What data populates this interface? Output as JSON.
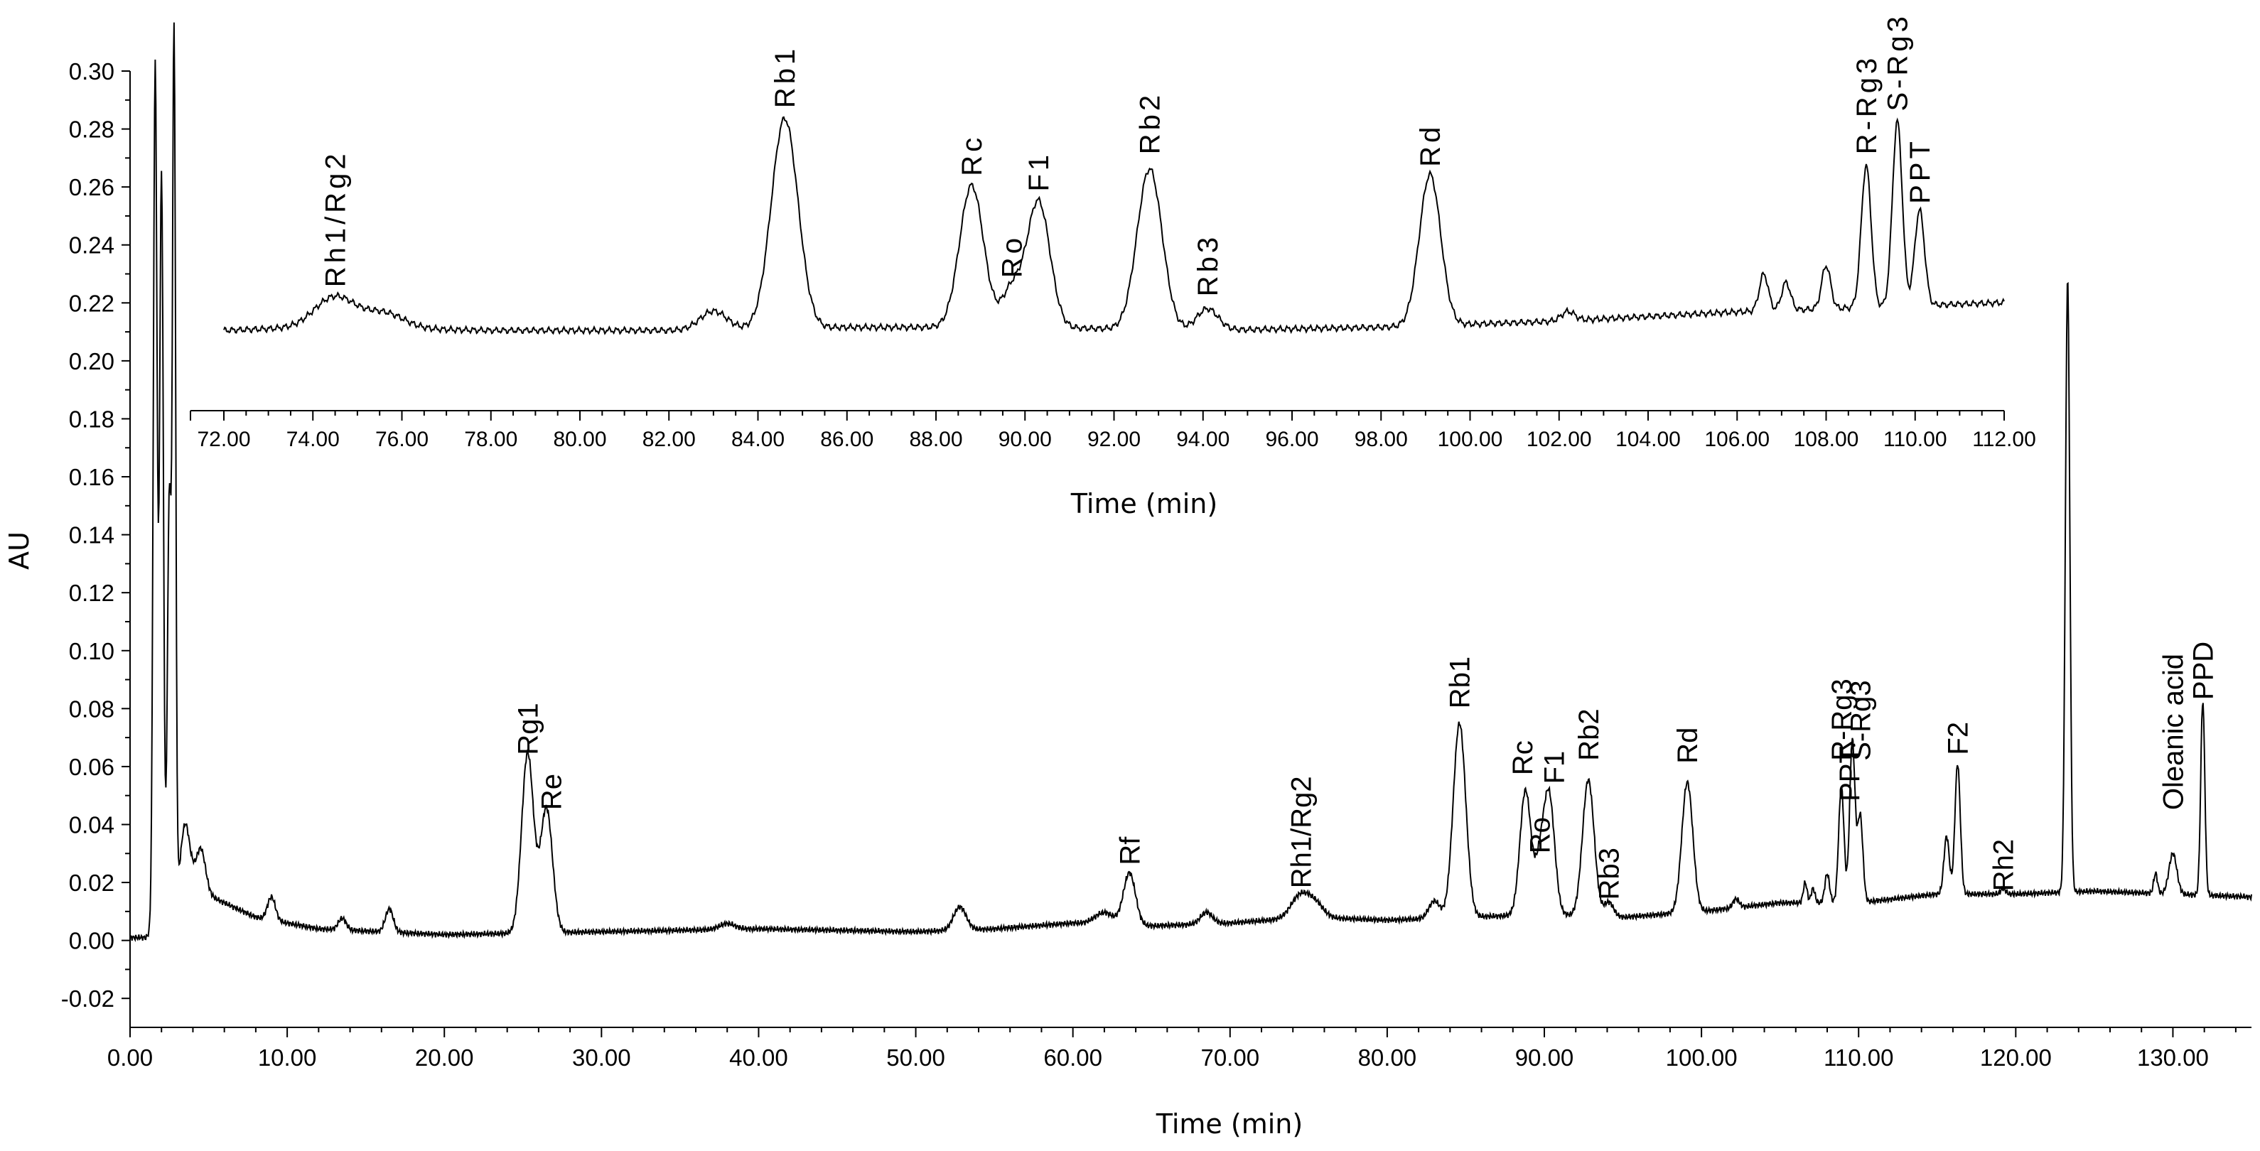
{
  "chart_data": [
    {
      "type": "line",
      "name": "main-chromatogram",
      "xlabel": "Time (min)",
      "ylabel": "AU",
      "xlim": [
        0,
        135
      ],
      "ylim": [
        -0.03,
        0.3
      ],
      "xticks": [
        "0.00",
        "10.00",
        "20.00",
        "30.00",
        "40.00",
        "50.00",
        "60.00",
        "70.00",
        "80.00",
        "90.00",
        "100.00",
        "110.00",
        "120.00",
        "130.00"
      ],
      "yticks": [
        "-0.02",
        "0.00",
        "0.02",
        "0.04",
        "0.06",
        "0.08",
        "0.10",
        "0.12",
        "0.14",
        "0.16",
        "0.18",
        "0.20",
        "0.22",
        "0.24",
        "0.26",
        "0.28",
        "0.30"
      ],
      "baseline": [
        [
          0,
          0.001
        ],
        [
          1,
          0.001
        ],
        [
          4,
          0.018
        ],
        [
          8,
          0.008
        ],
        [
          12,
          0.004
        ],
        [
          20,
          0.002
        ],
        [
          30,
          0.003
        ],
        [
          40,
          0.004
        ],
        [
          50,
          0.003
        ],
        [
          55,
          0.004
        ],
        [
          60,
          0.006
        ],
        [
          65,
          0.005
        ],
        [
          70,
          0.006
        ],
        [
          75,
          0.008
        ],
        [
          80,
          0.007
        ],
        [
          85,
          0.008
        ],
        [
          90,
          0.009
        ],
        [
          95,
          0.008
        ],
        [
          100,
          0.01
        ],
        [
          105,
          0.013
        ],
        [
          110,
          0.013
        ],
        [
          115,
          0.016
        ],
        [
          120,
          0.016
        ],
        [
          125,
          0.017
        ],
        [
          130,
          0.016
        ],
        [
          135,
          0.015
        ]
      ],
      "peaks": [
        {
          "x": 1.6,
          "height": 0.298,
          "width": 0.12
        },
        {
          "x": 2.0,
          "height": 0.258,
          "width": 0.12
        },
        {
          "x": 2.5,
          "height": 0.145,
          "width": 0.12
        },
        {
          "x": 2.8,
          "height": 0.298,
          "width": 0.1
        },
        {
          "x": 3.5,
          "height": 0.025,
          "width": 0.3
        },
        {
          "x": 4.5,
          "height": 0.015,
          "width": 0.3
        },
        {
          "x": 9.0,
          "height": 0.008,
          "width": 0.25
        },
        {
          "x": 13.5,
          "height": 0.004,
          "width": 0.25
        },
        {
          "x": 16.5,
          "height": 0.008,
          "width": 0.25
        },
        {
          "x": 25.3,
          "height": 0.062,
          "width": 0.38
        },
        {
          "x": 26.5,
          "height": 0.043,
          "width": 0.38
        },
        {
          "x": 38.0,
          "height": 0.002,
          "width": 0.5
        },
        {
          "x": 52.8,
          "height": 0.008,
          "width": 0.4
        },
        {
          "x": 62.0,
          "height": 0.004,
          "width": 0.6
        },
        {
          "x": 63.6,
          "height": 0.018,
          "width": 0.38
        },
        {
          "x": 68.5,
          "height": 0.004,
          "width": 0.38
        },
        {
          "x": 74.5,
          "height": 0.008,
          "width": 0.6
        },
        {
          "x": 75.5,
          "height": 0.004,
          "width": 0.5
        },
        {
          "x": 83.0,
          "height": 0.006,
          "width": 0.35
        },
        {
          "x": 84.6,
          "height": 0.067,
          "width": 0.4
        },
        {
          "x": 88.8,
          "height": 0.043,
          "width": 0.35
        },
        {
          "x": 89.7,
          "height": 0.015,
          "width": 0.3
        },
        {
          "x": 90.3,
          "height": 0.041,
          "width": 0.35
        },
        {
          "x": 92.8,
          "height": 0.047,
          "width": 0.37
        },
        {
          "x": 94.1,
          "height": 0.005,
          "width": 0.3
        },
        {
          "x": 99.1,
          "height": 0.045,
          "width": 0.35
        },
        {
          "x": 102.2,
          "height": 0.003,
          "width": 0.2
        },
        {
          "x": 106.6,
          "height": 0.007,
          "width": 0.12
        },
        {
          "x": 107.1,
          "height": 0.005,
          "width": 0.12
        },
        {
          "x": 108.0,
          "height": 0.01,
          "width": 0.15
        },
        {
          "x": 108.9,
          "height": 0.04,
          "width": 0.17
        },
        {
          "x": 109.6,
          "height": 0.056,
          "width": 0.17
        },
        {
          "x": 110.1,
          "height": 0.03,
          "width": 0.17
        },
        {
          "x": 115.6,
          "height": 0.02,
          "width": 0.17
        },
        {
          "x": 116.3,
          "height": 0.045,
          "width": 0.17
        },
        {
          "x": 119.2,
          "height": 0.002,
          "width": 0.15
        },
        {
          "x": 123.3,
          "height": 0.212,
          "width": 0.14
        },
        {
          "x": 128.9,
          "height": 0.007,
          "width": 0.12
        },
        {
          "x": 130.0,
          "height": 0.014,
          "width": 0.25
        },
        {
          "x": 131.9,
          "height": 0.067,
          "width": 0.13
        }
      ],
      "labels": [
        {
          "text": "Rg1",
          "x": 25.3,
          "y": 0.064
        },
        {
          "text": "Re",
          "x": 26.8,
          "y": 0.045
        },
        {
          "text": "Rf",
          "x": 63.6,
          "y": 0.026
        },
        {
          "text": "Rh1/Rg2",
          "x": 74.5,
          "y": 0.018
        },
        {
          "text": "Rb1",
          "x": 84.6,
          "y": 0.08
        },
        {
          "text": "Rc",
          "x": 88.6,
          "y": 0.057
        },
        {
          "text": "Ro",
          "x": 89.7,
          "y": 0.03
        },
        {
          "text": "F1",
          "x": 90.6,
          "y": 0.054
        },
        {
          "text": "Rb2",
          "x": 92.8,
          "y": 0.062
        },
        {
          "text": "Rb3",
          "x": 94.1,
          "y": 0.014
        },
        {
          "text": "Rd",
          "x": 99.1,
          "y": 0.061
        },
        {
          "text": "R-Rg3",
          "x": 108.9,
          "y": 0.062
        },
        {
          "text": "PPT",
          "x": 109.4,
          "y": 0.048
        },
        {
          "text": "S-Rg3",
          "x": 110.1,
          "y": 0.062
        },
        {
          "text": "F2",
          "x": 116.3,
          "y": 0.064
        },
        {
          "text": "Rh2",
          "x": 119.2,
          "y": 0.017
        },
        {
          "text": "Oleanic acid",
          "x": 130.0,
          "y": 0.045
        },
        {
          "text": "PPD",
          "x": 131.9,
          "y": 0.083
        }
      ]
    },
    {
      "type": "line",
      "name": "inset-chromatogram",
      "xlabel": "Time (min)",
      "xlim": [
        72,
        112
      ],
      "ylim": [
        0.19,
        0.3
      ],
      "xticks": [
        "72.00",
        "74.00",
        "76.00",
        "78.00",
        "80.00",
        "82.00",
        "84.00",
        "86.00",
        "88.00",
        "90.00",
        "92.00",
        "94.00",
        "96.00",
        "98.00",
        "100.00",
        "102.00",
        "104.00",
        "106.00",
        "108.00",
        "110.00",
        "112.00"
      ],
      "baseline": [
        [
          72.0,
          0.216
        ],
        [
          74.0,
          0.217
        ],
        [
          78.0,
          0.216
        ],
        [
          82.0,
          0.216
        ],
        [
          86.0,
          0.217
        ],
        [
          90.0,
          0.217
        ],
        [
          94.0,
          0.216
        ],
        [
          98.0,
          0.217
        ],
        [
          102.0,
          0.219
        ],
        [
          106.0,
          0.222
        ],
        [
          110.0,
          0.224
        ],
        [
          112.0,
          0.225
        ]
      ],
      "peaks": [
        {
          "x": 74.5,
          "height": 0.01,
          "width": 0.45
        },
        {
          "x": 75.6,
          "height": 0.005,
          "width": 0.45
        },
        {
          "x": 83.0,
          "height": 0.006,
          "width": 0.3
        },
        {
          "x": 84.6,
          "height": 0.068,
          "width": 0.3
        },
        {
          "x": 88.8,
          "height": 0.046,
          "width": 0.27
        },
        {
          "x": 89.7,
          "height": 0.012,
          "width": 0.22
        },
        {
          "x": 90.3,
          "height": 0.041,
          "width": 0.26
        },
        {
          "x": 92.8,
          "height": 0.052,
          "width": 0.28
        },
        {
          "x": 94.1,
          "height": 0.007,
          "width": 0.24
        },
        {
          "x": 99.1,
          "height": 0.049,
          "width": 0.24
        },
        {
          "x": 102.2,
          "height": 0.003,
          "width": 0.15
        },
        {
          "x": 106.6,
          "height": 0.012,
          "width": 0.1
        },
        {
          "x": 107.1,
          "height": 0.009,
          "width": 0.1
        },
        {
          "x": 108.0,
          "height": 0.014,
          "width": 0.1
        },
        {
          "x": 108.9,
          "height": 0.046,
          "width": 0.11
        },
        {
          "x": 109.6,
          "height": 0.06,
          "width": 0.11
        },
        {
          "x": 110.1,
          "height": 0.031,
          "width": 0.11
        }
      ],
      "labels": [
        {
          "text": "Rh1/Rg2",
          "x": 74.5,
          "y": 0.23
        },
        {
          "text": "Rb1",
          "x": 84.6,
          "y": 0.288
        },
        {
          "text": "Rc",
          "x": 88.8,
          "y": 0.266
        },
        {
          "text": "Ro",
          "x": 89.7,
          "y": 0.233
        },
        {
          "text": "F1",
          "x": 90.3,
          "y": 0.261
        },
        {
          "text": "Rb2",
          "x": 92.8,
          "y": 0.273
        },
        {
          "text": "Rb3",
          "x": 94.1,
          "y": 0.227
        },
        {
          "text": "Rd",
          "x": 99.1,
          "y": 0.269
        },
        {
          "text": "R-Rg3",
          "x": 108.9,
          "y": 0.273
        },
        {
          "text": "S-Rg3",
          "x": 109.6,
          "y": 0.287
        },
        {
          "text": "PPT",
          "x": 110.1,
          "y": 0.257
        }
      ]
    }
  ]
}
